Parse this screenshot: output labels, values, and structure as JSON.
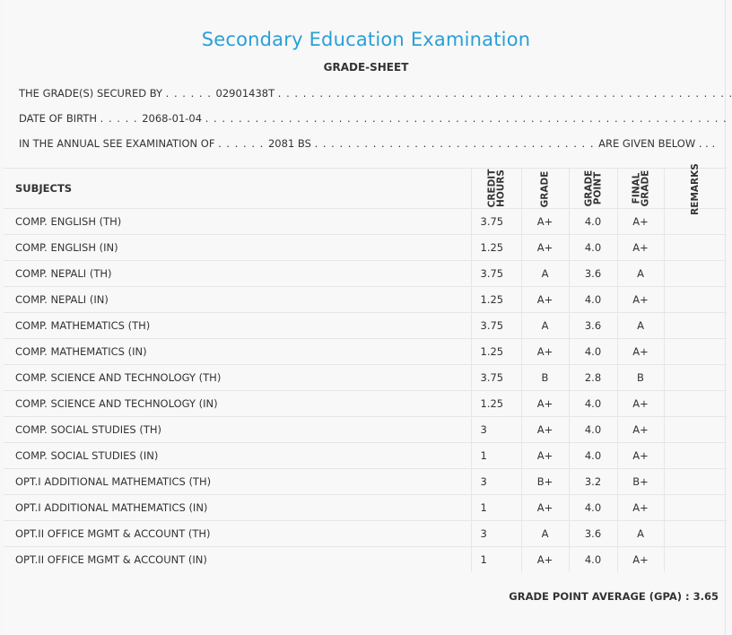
{
  "header": {
    "title": "Secondary Education Examination",
    "subtitle": "GRADE-SHEET"
  },
  "info": {
    "secured_by_label": "THE GRADE(S) SECURED BY",
    "symbol_no": "02901438T",
    "dob_label": "DATE OF BIRTH",
    "dob": "2068-01-04",
    "exam_label": "IN THE ANNUAL SEE EXAMINATION OF",
    "exam_year": "2081 BS",
    "given_below": "ARE GIVEN BELOW . . ."
  },
  "table": {
    "headers": {
      "subjects": "SUBJECTS",
      "credit_line1": "CREDIT",
      "credit_line2": "HOURS",
      "grade": "GRADE",
      "grade_point_line1": "GRADE",
      "grade_point_line2": "POINT",
      "final_line1": "FINAL",
      "final_line2": "GRADE",
      "remarks": "REMARKS"
    },
    "rows": [
      {
        "subject": "COMP. ENGLISH (TH)",
        "credit": "3.75",
        "grade": "A+",
        "point": "4.0",
        "final": "A+",
        "remarks": ""
      },
      {
        "subject": "COMP. ENGLISH (IN)",
        "credit": "1.25",
        "grade": "A+",
        "point": "4.0",
        "final": "A+",
        "remarks": ""
      },
      {
        "subject": "COMP. NEPALI (TH)",
        "credit": "3.75",
        "grade": "A",
        "point": "3.6",
        "final": "A",
        "remarks": ""
      },
      {
        "subject": "COMP. NEPALI (IN)",
        "credit": "1.25",
        "grade": "A+",
        "point": "4.0",
        "final": "A+",
        "remarks": ""
      },
      {
        "subject": "COMP. MATHEMATICS (TH)",
        "credit": "3.75",
        "grade": "A",
        "point": "3.6",
        "final": "A",
        "remarks": ""
      },
      {
        "subject": "COMP. MATHEMATICS (IN)",
        "credit": "1.25",
        "grade": "A+",
        "point": "4.0",
        "final": "A+",
        "remarks": ""
      },
      {
        "subject": "COMP. SCIENCE AND TECHNOLOGY (TH)",
        "credit": "3.75",
        "grade": "B",
        "point": "2.8",
        "final": "B",
        "remarks": ""
      },
      {
        "subject": "COMP. SCIENCE AND TECHNOLOGY (IN)",
        "credit": "1.25",
        "grade": "A+",
        "point": "4.0",
        "final": "A+",
        "remarks": ""
      },
      {
        "subject": "COMP. SOCIAL STUDIES (TH)",
        "credit": "3",
        "grade": "A+",
        "point": "4.0",
        "final": "A+",
        "remarks": ""
      },
      {
        "subject": "COMP. SOCIAL STUDIES (IN)",
        "credit": "1",
        "grade": "A+",
        "point": "4.0",
        "final": "A+",
        "remarks": ""
      },
      {
        "subject": "OPT.I ADDITIONAL MATHEMATICS (TH)",
        "credit": "3",
        "grade": "B+",
        "point": "3.2",
        "final": "B+",
        "remarks": ""
      },
      {
        "subject": "OPT.I ADDITIONAL MATHEMATICS (IN)",
        "credit": "1",
        "grade": "A+",
        "point": "4.0",
        "final": "A+",
        "remarks": ""
      },
      {
        "subject": "OPT.II OFFICE MGMT & ACCOUNT (TH)",
        "credit": "3",
        "grade": "A",
        "point": "3.6",
        "final": "A",
        "remarks": ""
      },
      {
        "subject": "OPT.II OFFICE MGMT & ACCOUNT (IN)",
        "credit": "1",
        "grade": "A+",
        "point": "4.0",
        "final": "A+",
        "remarks": ""
      }
    ]
  },
  "gpa": {
    "label": "GRADE POINT AVERAGE (GPA) :",
    "value": "3.65"
  },
  "colors": {
    "title": "#2a9fd6",
    "background": "#f8f8f8",
    "rule": "#e6e6e6"
  }
}
